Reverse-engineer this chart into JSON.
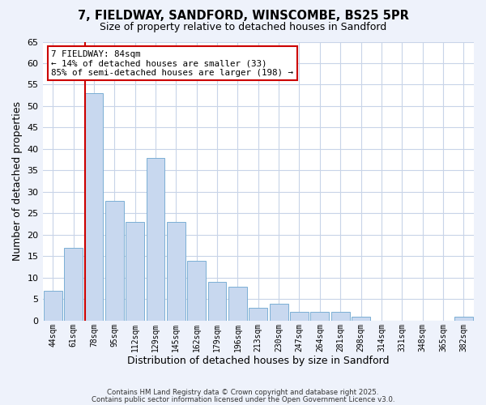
{
  "title": "7, FIELDWAY, SANDFORD, WINSCOMBE, BS25 5PR",
  "subtitle": "Size of property relative to detached houses in Sandford",
  "xlabel": "Distribution of detached houses by size in Sandford",
  "ylabel": "Number of detached properties",
  "bar_labels": [
    "44sqm",
    "61sqm",
    "78sqm",
    "95sqm",
    "112sqm",
    "129sqm",
    "145sqm",
    "162sqm",
    "179sqm",
    "196sqm",
    "213sqm",
    "230sqm",
    "247sqm",
    "264sqm",
    "281sqm",
    "298sqm",
    "314sqm",
    "331sqm",
    "348sqm",
    "365sqm",
    "382sqm"
  ],
  "bar_values": [
    7,
    17,
    53,
    28,
    23,
    38,
    23,
    14,
    9,
    8,
    3,
    4,
    2,
    2,
    2,
    1,
    0,
    0,
    0,
    0,
    1
  ],
  "bar_color": "#c8d8ef",
  "bar_edge_color": "#7bafd4",
  "vline_index": 2,
  "vline_color": "#cc0000",
  "ylim": [
    0,
    65
  ],
  "yticks": [
    0,
    5,
    10,
    15,
    20,
    25,
    30,
    35,
    40,
    45,
    50,
    55,
    60,
    65
  ],
  "annotation_title": "7 FIELDWAY: 84sqm",
  "annotation_line1": "← 14% of detached houses are smaller (33)",
  "annotation_line2": "85% of semi-detached houses are larger (198) →",
  "annotation_box_color": "#ffffff",
  "annotation_box_edge": "#cc0000",
  "footer1": "Contains HM Land Registry data © Crown copyright and database right 2025.",
  "footer2": "Contains public sector information licensed under the Open Government Licence v3.0.",
  "bg_color": "#eef2fb",
  "plot_bg_color": "#ffffff",
  "grid_color": "#c8d4e8"
}
